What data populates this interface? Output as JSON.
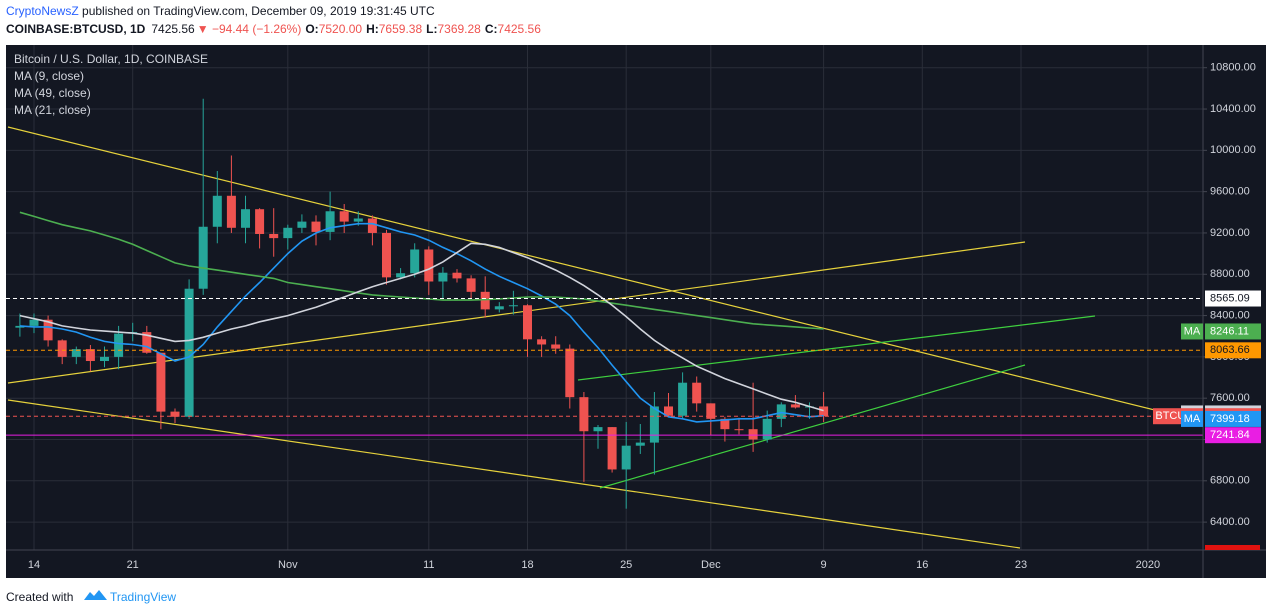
{
  "header": {
    "source": "CryptoNewsZ",
    "published": " published on TradingView.com, December 09, 2019 19:31:45 UTC",
    "symbol": "COINBASE:BTCUSD, 1D",
    "last": "7425.56",
    "change": "▼ −94.44 (−1.26%)",
    "o_label": "O:",
    "o": "7520.00",
    "h_label": "H:",
    "h": "7659.38",
    "l_label": "L:",
    "l": "7369.28",
    "c_label": "C:",
    "c": "7425.56"
  },
  "footer": {
    "created": "Created with",
    "brand": "TradingView"
  },
  "chart_data": {
    "type": "candlestick",
    "title": "Bitcoin / U.S. Dollar, 1D, COINBASE",
    "categories": [
      null,
      "14",
      null,
      null,
      null,
      null,
      null,
      null,
      "21",
      null,
      null,
      null,
      null,
      null,
      null,
      null,
      null,
      null,
      null,
      "Nov",
      null,
      null,
      null,
      null,
      null,
      null,
      null,
      null,
      null,
      "11",
      null,
      null,
      null,
      null,
      null,
      null,
      "18",
      null,
      null,
      null,
      null,
      null,
      null,
      "25",
      null,
      null,
      null,
      null,
      null,
      "Dec",
      null,
      null,
      null,
      null,
      null,
      null,
      null,
      "9",
      null,
      null,
      null,
      null,
      null,
      null,
      "16",
      null,
      null,
      null,
      null,
      null,
      null,
      "23",
      null,
      null,
      null,
      null,
      null,
      null,
      null,
      null,
      "2020",
      null,
      null,
      null
    ],
    "ohlc": {
      "name": "BTCUSD",
      "up_color": "#26a69a",
      "down_color": "#ef5350",
      "open": [
        8283,
        8300,
        8360,
        8160,
        8000,
        8075,
        7960,
        8000,
        8225,
        8240,
        8040,
        7470,
        7420,
        8660,
        9260,
        9560,
        9250,
        9430,
        9190,
        9150,
        9250,
        9310,
        9210,
        9410,
        9310,
        9340,
        9200,
        8770,
        8810,
        9040,
        8730,
        8815,
        8760,
        8630,
        8460,
        8490,
        8500,
        8170,
        8120,
        8080,
        7610,
        7280,
        7320,
        6910,
        7140,
        7170,
        7520,
        7430,
        7750,
        7550,
        7400,
        7300,
        7300,
        7200,
        7400,
        7540,
        7510,
        7520,
        null,
        null,
        null,
        null,
        null,
        null,
        null,
        null,
        null,
        null,
        null,
        null,
        null,
        null,
        null,
        null,
        null,
        null,
        null,
        null,
        null,
        null,
        null,
        null,
        null,
        null
      ],
      "high": [
        8420,
        8420,
        8400,
        8170,
        8100,
        8115,
        8100,
        8300,
        8330,
        8300,
        8040,
        7500,
        8750,
        10500,
        9800,
        9950,
        9560,
        9440,
        9440,
        9280,
        9380,
        9370,
        9600,
        9480,
        9410,
        9370,
        9230,
        8860,
        9100,
        9070,
        8870,
        8850,
        8790,
        8780,
        8530,
        8640,
        8510,
        8200,
        8200,
        8120,
        7660,
        7340,
        7320,
        7370,
        7350,
        7660,
        7650,
        7850,
        7810,
        7550,
        7420,
        7410,
        7750,
        7480,
        7560,
        7630,
        7560,
        7659.38,
        null,
        null,
        null,
        null,
        null,
        null,
        null,
        null,
        null,
        null,
        null,
        null,
        null,
        null,
        null,
        null,
        null,
        null,
        null,
        null,
        null,
        null,
        null,
        null,
        null,
        null
      ],
      "low": [
        8196,
        8230,
        8100,
        7930,
        7930,
        7860,
        7900,
        7880,
        8150,
        8030,
        7300,
        7360,
        7400,
        8600,
        9100,
        9200,
        9100,
        9050,
        8970,
        9040,
        9200,
        9080,
        9130,
        9200,
        9270,
        9080,
        8700,
        8750,
        8770,
        8600,
        8560,
        8720,
        8570,
        8380,
        8430,
        8410,
        8000,
        8000,
        8030,
        7500,
        6790,
        7110,
        6880,
        6530,
        7060,
        6860,
        7420,
        7400,
        7470,
        7240,
        7180,
        7250,
        7080,
        7170,
        7320,
        7500,
        7400,
        7369.28,
        null,
        null,
        null,
        null,
        null,
        null,
        null,
        null,
        null,
        null,
        null,
        null,
        null,
        null,
        null,
        null,
        null,
        null,
        null,
        null,
        null,
        null,
        null,
        null,
        null,
        null
      ],
      "close": [
        8300,
        8360,
        8160,
        8000,
        8075,
        7960,
        8000,
        8225,
        8240,
        8040,
        7470,
        7420,
        8660,
        9260,
        9560,
        9250,
        9430,
        9190,
        9150,
        9250,
        9310,
        9210,
        9410,
        9310,
        9340,
        9200,
        8770,
        8810,
        9040,
        8730,
        8815,
        8760,
        8630,
        8460,
        8490,
        8500,
        8170,
        8120,
        8080,
        7610,
        7280,
        7320,
        6910,
        7140,
        7170,
        7520,
        7430,
        7750,
        7550,
        7400,
        7300,
        7290,
        7200,
        7400,
        7540,
        7510,
        7520,
        7425.56,
        null,
        null,
        null,
        null,
        null,
        null,
        null,
        null,
        null,
        null,
        null,
        null,
        null,
        null,
        null,
        null,
        null,
        null,
        null,
        null,
        null,
        null,
        null,
        null,
        null,
        null
      ]
    },
    "series": [
      {
        "name": "MA (9, close)",
        "color": "#2196f3",
        "values": [
          8300,
          8290,
          8290,
          8270,
          8240,
          8190,
          8150,
          8130,
          8120,
          8100,
          8030,
          7960,
          8000,
          8120,
          8290,
          8440,
          8590,
          8720,
          8860,
          9000,
          9120,
          9200,
          9250,
          9270,
          9290,
          9290,
          9250,
          9210,
          9180,
          9130,
          9060,
          9000,
          8930,
          8850,
          8780,
          8720,
          8660,
          8590,
          8510,
          8400,
          8240,
          8090,
          7920,
          7760,
          7600,
          7500,
          7420,
          7400,
          7370,
          7380,
          7390,
          7400,
          7400,
          7430,
          7460,
          7440,
          7420,
          7430,
          null,
          null,
          null,
          null,
          null,
          null,
          null,
          null,
          null,
          null,
          null,
          null,
          null,
          null,
          null,
          null,
          null,
          null,
          null,
          null,
          null,
          null,
          null,
          null,
          null,
          null
        ]
      },
      {
        "name": "MA (49, close)",
        "color": "#4caf50",
        "values": [
          9400,
          9360,
          9320,
          9280,
          9250,
          9220,
          9180,
          9140,
          9090,
          9030,
          8970,
          8910,
          8880,
          8860,
          8840,
          8820,
          8800,
          8780,
          8760,
          8720,
          8700,
          8680,
          8660,
          8640,
          8620,
          8600,
          8590,
          8580,
          8570,
          8560,
          8550,
          8550,
          8550,
          8555,
          8560,
          8570,
          8580,
          8580,
          8580,
          8570,
          8560,
          8540,
          8520,
          8500,
          8480,
          8460,
          8440,
          8420,
          8400,
          8380,
          8360,
          8340,
          8320,
          8310,
          8300,
          8290,
          8280,
          8270,
          null,
          null,
          null,
          null,
          null,
          null,
          null,
          null,
          null,
          null,
          null,
          null,
          null,
          null,
          null,
          null,
          null,
          null,
          null,
          null,
          null,
          null,
          null,
          null,
          null,
          null
        ]
      },
      {
        "name": "MA (21, close)",
        "color": "#d1d4dc",
        "values": [
          8400,
          8370,
          8340,
          8300,
          8280,
          8260,
          8250,
          8240,
          8230,
          8210,
          8180,
          8150,
          8160,
          8190,
          8230,
          8270,
          8300,
          8340,
          8370,
          8400,
          8440,
          8480,
          8530,
          8580,
          8630,
          8680,
          8720,
          8760,
          8800,
          8850,
          8920,
          9010,
          9100,
          9090,
          9060,
          9010,
          8960,
          8900,
          8840,
          8770,
          8690,
          8600,
          8500,
          8390,
          8270,
          8160,
          8070,
          7990,
          7910,
          7850,
          7790,
          7740,
          7690,
          7640,
          7590,
          7560,
          7520,
          7480,
          null,
          null,
          null,
          null,
          null,
          null,
          null,
          null,
          null,
          null,
          null,
          null,
          null,
          null,
          null,
          null,
          null,
          null,
          null,
          null,
          null,
          null,
          null,
          null,
          null,
          null
        ]
      }
    ],
    "ylim": [
      6130,
      11020
    ],
    "yticks": [
      {
        "value": 6400,
        "label": "6400.00"
      },
      {
        "value": 6800,
        "label": "6800.00"
      },
      {
        "value": 7200,
        "label": "7200.00"
      },
      {
        "value": 7600,
        "label": "7600.00"
      },
      {
        "value": 8000,
        "label": "8000.00"
      },
      {
        "value": 8400,
        "label": "8400.00"
      },
      {
        "value": 8800,
        "label": "8800.00"
      },
      {
        "value": 9200,
        "label": "9200.00"
      },
      {
        "value": 9600,
        "label": "9600.00"
      },
      {
        "value": 10000,
        "label": "10000.00"
      },
      {
        "value": 10400,
        "label": "10400.00"
      },
      {
        "value": 10800,
        "label": "10800.00"
      }
    ],
    "grid": true,
    "levels": [
      {
        "value": 8565.09,
        "color": "#ffffff",
        "text_color": "#131722",
        "line": "#ffffff",
        "dash": true
      },
      {
        "value": 8246.11,
        "tag": "MA",
        "color": "#4caf50",
        "text_color": "#ffffff"
      },
      {
        "value": 8063.66,
        "color": "#ff9800",
        "text_color": "#131722",
        "line": "#ff9800",
        "dash": true
      },
      {
        "value": 7452.29,
        "tag": "MA",
        "color": "#d1d4dc",
        "text_color": "#131722"
      },
      {
        "value": 7425.56,
        "tag": "BTCUSD",
        "color": "#ef5350",
        "text_color": "#ffffff",
        "line": "#ef5350",
        "dash": true
      },
      {
        "value": 7399.18,
        "tag": "MA",
        "color": "#2196f3",
        "text_color": "#ffffff"
      },
      {
        "value": 7241.84,
        "color": "#e91ee3",
        "text_color": "#ffffff",
        "line": "#e91ee3",
        "dash": false
      }
    ]
  }
}
